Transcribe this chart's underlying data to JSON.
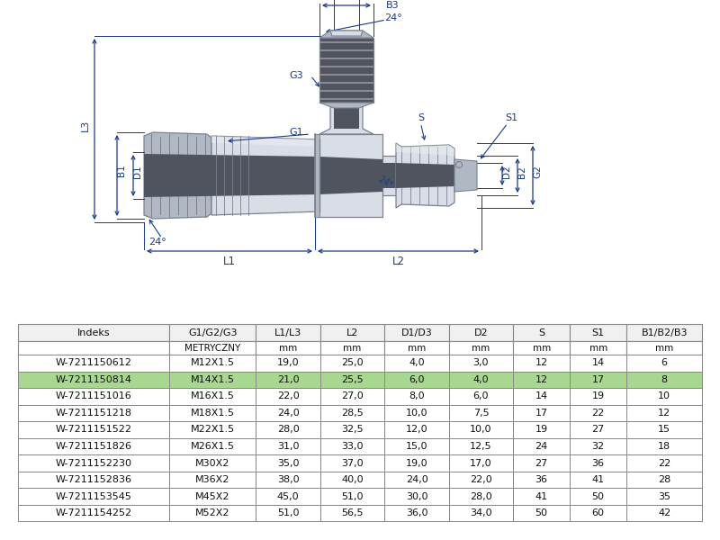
{
  "bg_color": "#ffffff",
  "dim_color": "#1a3a8a",
  "table_header_bg": "#f0f0f0",
  "table_highlight_bg": "#a8d890",
  "table_border_color": "#888888",
  "table": {
    "columns": [
      "Indeks",
      "G1/G2/G3",
      "L1/L3",
      "L2",
      "D1/D3",
      "D2",
      "S",
      "S1",
      "B1/B2/B3"
    ],
    "units": [
      "",
      "METRYCZNY",
      "mm",
      "mm",
      "mm",
      "mm",
      "mm",
      "mm",
      "mm"
    ],
    "rows": [
      [
        "W-7211150612",
        "M12X1.5",
        "19,0",
        "25,0",
        "4,0",
        "3,0",
        "12",
        "14",
        "6"
      ],
      [
        "W-7211150814",
        "M14X1.5",
        "21,0",
        "25,5",
        "6,0",
        "4,0",
        "12",
        "17",
        "8"
      ],
      [
        "W-7211151016",
        "M16X1.5",
        "22,0",
        "27,0",
        "8,0",
        "6,0",
        "14",
        "19",
        "10"
      ],
      [
        "W-7211151218",
        "M18X1.5",
        "24,0",
        "28,5",
        "10,0",
        "7,5",
        "17",
        "22",
        "12"
      ],
      [
        "W-7211151522",
        "M22X1.5",
        "28,0",
        "32,5",
        "12,0",
        "10,0",
        "19",
        "27",
        "15"
      ],
      [
        "W-7211151826",
        "M26X1.5",
        "31,0",
        "33,0",
        "15,0",
        "12,5",
        "24",
        "32",
        "18"
      ],
      [
        "W-7211152230",
        "M30X2",
        "35,0",
        "37,0",
        "19,0",
        "17,0",
        "27",
        "36",
        "22"
      ],
      [
        "W-7211152836",
        "M36X2",
        "38,0",
        "40,0",
        "24,0",
        "22,0",
        "36",
        "41",
        "28"
      ],
      [
        "W-7211153545",
        "M45X2",
        "45,0",
        "51,0",
        "30,0",
        "28,0",
        "41",
        "50",
        "35"
      ],
      [
        "W-7211154252",
        "M52X2",
        "51,0",
        "56,5",
        "36,0",
        "34,0",
        "50",
        "60",
        "42"
      ]
    ],
    "highlight_row": 1
  }
}
